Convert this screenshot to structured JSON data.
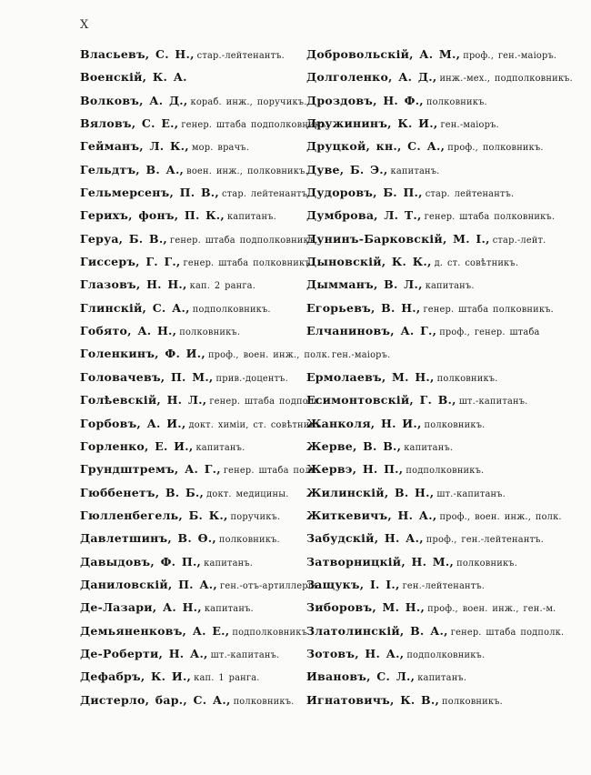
{
  "page": {
    "number": "X"
  },
  "columns": {
    "left": [
      {
        "name": "Власьевъ, С. Н.,",
        "rank": "стар.-лейтенантъ."
      },
      {
        "name": "Военскій, К. А.",
        "rank": ""
      },
      {
        "name": "Волковъ, А. Д.,",
        "rank": "кораб. инж., поручикъ."
      },
      {
        "name": "Вяловъ, С. Е.,",
        "rank": "генер. штаба подполковникъ."
      },
      {
        "name": "Гейманъ, Л. К.,",
        "rank": "мор. врачъ."
      },
      {
        "name": "Гельдтъ, В. А.,",
        "rank": "воен. инж., полковникъ."
      },
      {
        "name": "Гельмерсенъ, П. В.,",
        "rank": "стар. лейтенантъ."
      },
      {
        "name": "Герихъ, фонъ, П. К.,",
        "rank": "капитанъ."
      },
      {
        "name": "Геруа, Б. В.,",
        "rank": "генер. штаба подполковникъ."
      },
      {
        "name": "Гиссеръ, Г. Г.,",
        "rank": "генер. штаба полковникъ."
      },
      {
        "name": "Глазовъ, Н. Н.,",
        "rank": "кап. 2 ранга."
      },
      {
        "name": "Глинскій, С. А.,",
        "rank": "подполковникъ."
      },
      {
        "name": "Гобято, А. Н.,",
        "rank": "полковникъ."
      },
      {
        "name": "Голенкинъ, Ф. И.,",
        "rank": "проф., воен. инж., полк."
      },
      {
        "name": "Головачевъ, П. М.,",
        "rank": "прив.-доцентъ."
      },
      {
        "name": "Голѣевскій, Н. Л.,",
        "rank": "генер. штаба подполк."
      },
      {
        "name": "Горбовъ, А. И.,",
        "rank": "докт. химіи, ст. совѣтникъ."
      },
      {
        "name": "Горленко, Е. И.,",
        "rank": "капитанъ."
      },
      {
        "name": "Грундштремъ, А. Г.,",
        "rank": "генер. штаба полк."
      },
      {
        "name": "Гюббенетъ, В. Б.,",
        "rank": "докт. медицины."
      },
      {
        "name": "Гюлленбегель, Б. К.,",
        "rank": "поручикъ."
      },
      {
        "name": "Давлетшинъ, В. Ѳ.,",
        "rank": "полковникъ."
      },
      {
        "name": "Давыдовъ, Ф. П.,",
        "rank": "капитанъ."
      },
      {
        "name": "Даниловскій, П. А.,",
        "rank": "ген.-отъ-артиллеріи."
      },
      {
        "name": "Де-Лазари, А. Н.,",
        "rank": "капитанъ."
      },
      {
        "name": "Демьяненковъ, А. Е.,",
        "rank": "подполковникъ."
      },
      {
        "name": "Де-Роберти, Н. А.,",
        "rank": "шт.-капитанъ."
      },
      {
        "name": "Дефабръ, К. И.,",
        "rank": "кап. 1 ранга."
      },
      {
        "name": "Дистерло, бар., С. А.,",
        "rank": "полковникъ."
      }
    ],
    "right": [
      {
        "name": "Добровольскій, А. М.,",
        "rank": "проф., ген.-маіоръ."
      },
      {
        "name": "Долголенко, А. Д.,",
        "rank": "инж.-мех., подполковникъ."
      },
      {
        "name": "Дроздовъ, Н. Ф.,",
        "rank": "полковникъ."
      },
      {
        "name": "Дружининъ, К. И.,",
        "rank": "ген.-маіоръ."
      },
      {
        "name": "Друцкой, кн., С. А.,",
        "rank": "проф., полковникъ."
      },
      {
        "name": "Дуве, Б. Э.,",
        "rank": "капитанъ."
      },
      {
        "name": "Дудоровъ, Б. П.,",
        "rank": "стар. лейтенантъ."
      },
      {
        "name": "Думброва, Л. Т.,",
        "rank": "генер. штаба полковникъ."
      },
      {
        "name": "Дунинъ-Барковскій, М. І.,",
        "rank": "стар.-лейт."
      },
      {
        "name": "Дыновскій, К. К.,",
        "rank": "д. ст. совѣтникъ."
      },
      {
        "name": "Дымманъ, В. Л.,",
        "rank": "капитанъ."
      },
      {
        "name": "Егорьевъ, В. Н.,",
        "rank": "генер. штаба полковникъ."
      },
      {
        "name": "Елчаниновъ, А. Г.,",
        "rank": "проф., генер. штаба"
      },
      {
        "cont": "ген.-маіоръ."
      },
      {
        "name": "Ермолаевъ, М. Н.,",
        "rank": "полковникъ."
      },
      {
        "name": "Есимонтовскій, Г. В.,",
        "rank": "шт.-капитанъ."
      },
      {
        "name": "Жанколя, Н. И.,",
        "rank": "полковникъ."
      },
      {
        "name": "Жерве, В. В.,",
        "rank": "капитанъ."
      },
      {
        "name": "Жервэ, Н. П.,",
        "rank": "подполковникъ."
      },
      {
        "name": "Жилинскій, В. Н.,",
        "rank": "шт.-капитанъ."
      },
      {
        "name": "Житкевичъ, Н. А.,",
        "rank": "проф., воен. инж., полк."
      },
      {
        "name": "Забудскій, Н. А.,",
        "rank": "проф., ген.-лейтенантъ."
      },
      {
        "name": "Затворницкій, Н. М.,",
        "rank": "полковникъ."
      },
      {
        "name": "Защукъ, І. І.,",
        "rank": "ген.-лейтенантъ."
      },
      {
        "name": "Зиборовъ, М. Н.,",
        "rank": "проф., воен. инж., ген.-м."
      },
      {
        "name": "Златолинскій, В. А.,",
        "rank": "генер. штаба подполк."
      },
      {
        "name": "Зотовъ, Н. А.,",
        "rank": "подполковникъ."
      },
      {
        "name": "Ивановъ, С. Л.,",
        "rank": "капитанъ."
      },
      {
        "name": "Игнатовичъ, К. В.,",
        "rank": "полковникъ."
      }
    ]
  }
}
